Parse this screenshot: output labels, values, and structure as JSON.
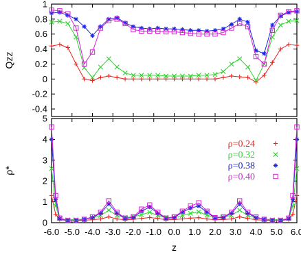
{
  "chart_data": [
    {
      "type": "line",
      "panel": "top",
      "ylabel": "Qzz",
      "xlabel": "",
      "xlim": [
        -6.0,
        6.0
      ],
      "ylim": [
        -0.5,
        1.0
      ],
      "yticks": [
        "1",
        "0.8",
        "0.6",
        "0.4",
        "0.2",
        "0",
        "-0.2",
        "-0.4"
      ],
      "ytick_values": [
        1.0,
        0.8,
        0.6,
        0.4,
        0.2,
        0.0,
        -0.2,
        -0.4
      ],
      "x": [
        -6.0,
        -5.6,
        -5.2,
        -4.8,
        -4.4,
        -4.0,
        -3.6,
        -3.2,
        -2.8,
        -2.4,
        -2.0,
        -1.6,
        -1.2,
        -0.8,
        -0.4,
        0.0,
        0.4,
        0.8,
        1.2,
        1.6,
        2.0,
        2.4,
        2.8,
        3.2,
        3.6,
        4.0,
        4.4,
        4.8,
        5.2,
        5.6,
        6.0
      ],
      "series": [
        {
          "name": "ρ=0.24",
          "color": "#e8231d",
          "marker": "+",
          "values": [
            0.44,
            0.46,
            0.42,
            0.2,
            0.0,
            -0.02,
            0.02,
            0.04,
            0.02,
            0.0,
            0.0,
            0.0,
            0.0,
            0.0,
            0.0,
            0.0,
            0.0,
            0.0,
            0.0,
            0.0,
            0.0,
            0.02,
            0.04,
            0.03,
            0.02,
            -0.04,
            0.05,
            0.22,
            0.4,
            0.46,
            0.45
          ]
        },
        {
          "name": "ρ=0.32",
          "color": "#2cd52c",
          "marker": "×",
          "values": [
            0.76,
            0.77,
            0.74,
            0.56,
            0.15,
            0.02,
            0.16,
            0.27,
            0.16,
            0.08,
            0.05,
            0.05,
            0.05,
            0.05,
            0.04,
            0.04,
            0.04,
            0.04,
            0.05,
            0.05,
            0.06,
            0.1,
            0.2,
            0.27,
            0.16,
            -0.02,
            0.2,
            0.56,
            0.72,
            0.77,
            0.78
          ]
        },
        {
          "name": "ρ=0.38",
          "color": "#1c24e0",
          "marker": "*",
          "values": [
            0.88,
            0.89,
            0.85,
            0.8,
            0.7,
            0.58,
            0.7,
            0.8,
            0.82,
            0.75,
            0.7,
            0.68,
            0.67,
            0.68,
            0.67,
            0.67,
            0.66,
            0.65,
            0.65,
            0.64,
            0.65,
            0.67,
            0.73,
            0.8,
            0.76,
            0.38,
            0.34,
            0.72,
            0.84,
            0.89,
            0.9
          ]
        },
        {
          "name": "ρ=0.40",
          "color": "#d61fd6",
          "marker": "□",
          "values": [
            0.92,
            0.91,
            0.87,
            0.68,
            0.2,
            0.36,
            0.68,
            0.78,
            0.8,
            0.74,
            0.66,
            0.64,
            0.64,
            0.64,
            0.63,
            0.63,
            0.62,
            0.61,
            0.6,
            0.6,
            0.6,
            0.62,
            0.68,
            0.74,
            0.7,
            0.3,
            0.2,
            0.65,
            0.85,
            0.9,
            0.91
          ]
        }
      ]
    },
    {
      "type": "line",
      "panel": "bottom",
      "ylabel": "ρ*",
      "xlabel": "z",
      "xlim": [
        -6.0,
        6.0
      ],
      "ylim": [
        0,
        5
      ],
      "xticks": [
        "-6.0",
        "-5.0",
        "-4.0",
        "-3.0",
        "-2.0",
        "-1.0",
        "0.0",
        "1.0",
        "2.0",
        "3.0",
        "4.0",
        "5.0",
        "6.0"
      ],
      "xtick_values": [
        -6.0,
        -5.0,
        -4.0,
        -3.0,
        -2.0,
        -1.0,
        0.0,
        1.0,
        2.0,
        3.0,
        4.0,
        5.0,
        6.0
      ],
      "yticks": [
        "5",
        "4",
        "3",
        "2",
        "1",
        "0"
      ],
      "ytick_values": [
        5,
        4,
        3,
        2,
        1,
        0
      ],
      "legend_position": "right",
      "x": [
        -6.0,
        -5.8,
        -5.6,
        -5.2,
        -4.8,
        -4.4,
        -4.0,
        -3.6,
        -3.2,
        -2.8,
        -2.4,
        -2.0,
        -1.6,
        -1.2,
        -0.8,
        -0.4,
        0.0,
        0.4,
        0.8,
        1.2,
        1.6,
        2.0,
        2.4,
        2.8,
        3.2,
        3.6,
        4.0,
        4.4,
        4.8,
        5.2,
        5.6,
        5.8,
        6.0
      ],
      "series": [
        {
          "name": "ρ=0.24",
          "color": "#e8231d",
          "marker": "+",
          "values": [
            1.3,
            0.4,
            0.15,
            0.1,
            0.1,
            0.12,
            0.14,
            0.18,
            0.28,
            0.18,
            0.14,
            0.16,
            0.2,
            0.25,
            0.2,
            0.14,
            0.15,
            0.18,
            0.22,
            0.24,
            0.18,
            0.14,
            0.15,
            0.18,
            0.28,
            0.2,
            0.14,
            0.12,
            0.1,
            0.1,
            0.15,
            0.4,
            1.3
          ]
        },
        {
          "name": "ρ=0.32",
          "color": "#2cd52c",
          "marker": "×",
          "values": [
            2.6,
            0.8,
            0.2,
            0.14,
            0.14,
            0.18,
            0.24,
            0.35,
            0.6,
            0.35,
            0.25,
            0.28,
            0.38,
            0.5,
            0.35,
            0.25,
            0.26,
            0.34,
            0.45,
            0.52,
            0.36,
            0.26,
            0.27,
            0.35,
            0.6,
            0.35,
            0.24,
            0.18,
            0.14,
            0.14,
            0.2,
            0.8,
            2.6
          ]
        },
        {
          "name": "ρ=0.38",
          "color": "#1c24e0",
          "marker": "*",
          "values": [
            4.0,
            1.1,
            0.2,
            0.1,
            0.1,
            0.15,
            0.25,
            0.45,
            0.9,
            0.45,
            0.2,
            0.25,
            0.55,
            0.75,
            0.45,
            0.2,
            0.25,
            0.5,
            0.7,
            0.8,
            0.5,
            0.22,
            0.25,
            0.45,
            0.9,
            0.45,
            0.25,
            0.15,
            0.1,
            0.1,
            0.2,
            1.1,
            4.0
          ]
        },
        {
          "name": "ρ=0.40",
          "color": "#d61fd6",
          "marker": "□",
          "values": [
            4.6,
            1.3,
            0.22,
            0.1,
            0.1,
            0.16,
            0.28,
            0.5,
            1.05,
            0.5,
            0.22,
            0.28,
            0.65,
            0.85,
            0.5,
            0.22,
            0.28,
            0.55,
            0.8,
            0.95,
            0.55,
            0.24,
            0.28,
            0.5,
            1.05,
            0.5,
            0.28,
            0.16,
            0.1,
            0.1,
            0.22,
            1.3,
            4.6
          ]
        }
      ]
    }
  ]
}
